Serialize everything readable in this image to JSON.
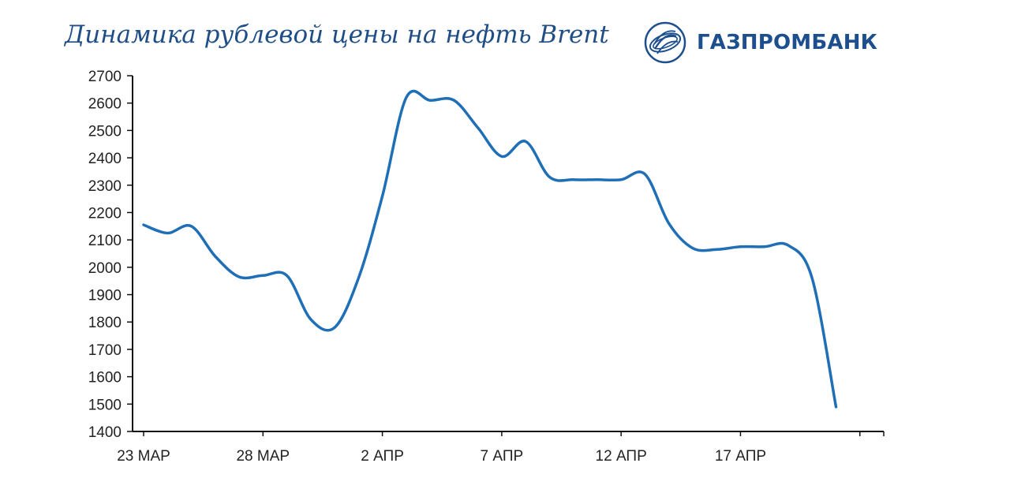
{
  "title": "Динамика рублевой цены на нефть Brent",
  "logo": {
    "text": "ГАЗПРОМБАНК",
    "icon": "gazprom-flame-globe-icon",
    "color": "#1d4f8f"
  },
  "colors": {
    "line": "#1f6fb7",
    "axis": "#111111",
    "title": "#1f4e86"
  },
  "chart_data": {
    "type": "line",
    "title": "Динамика рублевой цены на нефть Brent",
    "xlabel": "",
    "ylabel": "",
    "ylim": [
      1400,
      2700
    ],
    "yticks": [
      1400,
      1500,
      1600,
      1700,
      1800,
      1900,
      2000,
      2100,
      2200,
      2300,
      2400,
      2500,
      2600,
      2700
    ],
    "xlim": [
      "23 МАР",
      "22 АПР"
    ],
    "xticks": [
      "23 МАР",
      "28 МАР",
      "2 АПР",
      "7 АПР",
      "12 АПР",
      "17 АПР"
    ],
    "x": [
      "23 МАР",
      "24 МАР",
      "25 МАР",
      "26 МАР",
      "27 МАР",
      "28 МАР",
      "29 МАР",
      "30 МАР",
      "31 МАР",
      "1 АПР",
      "2 АПР",
      "3 АПР",
      "4 АПР",
      "5 АПР",
      "6 АПР",
      "7 АПР",
      "8 АПР",
      "9 АПР",
      "10 АПР",
      "11 АПР",
      "12 АПР",
      "13 АПР",
      "14 АПР",
      "15 АПР",
      "16 АПР",
      "17 АПР",
      "18 АПР",
      "19 АПР",
      "20 АПР",
      "21 АПР"
    ],
    "values": [
      2155,
      2125,
      2150,
      2040,
      1965,
      1970,
      1970,
      1810,
      1780,
      1960,
      2260,
      2620,
      2610,
      2610,
      2510,
      2405,
      2460,
      2330,
      2320,
      2320,
      2320,
      2340,
      2160,
      2070,
      2065,
      2075,
      2075,
      2080,
      1960,
      1490
    ],
    "grid": false,
    "legend": "none"
  }
}
